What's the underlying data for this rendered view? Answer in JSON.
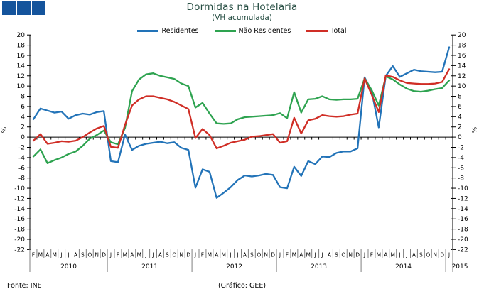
{
  "header": {
    "title": "Dormidas na Hotelaria",
    "subtitle": "(VH acumulada)"
  },
  "axes": {
    "unit": "%"
  },
  "footer": {
    "source": "Fonte: INE",
    "credit": "(Gráfico: GEE)"
  },
  "logo": {
    "color": "#14549C",
    "square_count": 3
  },
  "colors": {
    "title_text": "#264D42",
    "axis": "#000000"
  },
  "chart_data": {
    "type": "line",
    "title": "Dormidas na Hotelaria",
    "subtitle": "(VH acumulada)",
    "legend_position": "top",
    "y_axis": {
      "min": -22,
      "max": 20,
      "step": 2,
      "unit": "%",
      "sides": [
        "left",
        "right"
      ]
    },
    "x_months": [
      "F",
      "M",
      "A",
      "M",
      "J",
      "J",
      "A",
      "S",
      "O",
      "N",
      "D",
      "J",
      "F",
      "M",
      "A",
      "M",
      "J",
      "J",
      "A",
      "S",
      "O",
      "N",
      "D",
      "J",
      "F",
      "M",
      "A",
      "M",
      "J",
      "J",
      "A",
      "S",
      "O",
      "N",
      "D",
      "J",
      "F",
      "M",
      "A",
      "M",
      "J",
      "J",
      "A",
      "S",
      "O",
      "N",
      "D",
      "J",
      "F",
      "M",
      "A",
      "M",
      "J",
      "J",
      "A",
      "S",
      "O",
      "N",
      "D",
      "J"
    ],
    "years": [
      {
        "label": "2010",
        "start": 0,
        "count": 11
      },
      {
        "label": "2011",
        "start": 11,
        "count": 12
      },
      {
        "label": "2012",
        "start": 23,
        "count": 12
      },
      {
        "label": "2013",
        "start": 35,
        "count": 12
      },
      {
        "label": "2014",
        "start": 47,
        "count": 12
      },
      {
        "label": "2015",
        "start": 59,
        "count": 1
      }
    ],
    "series": [
      {
        "name": "Residentes",
        "color": "#2273B8",
        "values": [
          3.5,
          5.6,
          5.2,
          4.8,
          5.0,
          3.6,
          4.3,
          4.6,
          4.4,
          4.9,
          5.1,
          -4.7,
          -4.9,
          0.5,
          -2.5,
          -1.7,
          -1.3,
          -1.1,
          -0.9,
          -1.2,
          -1.0,
          -2.1,
          -2.5,
          -9.9,
          -6.3,
          -6.8,
          -11.9,
          -10.9,
          -9.8,
          -8.4,
          -7.5,
          -7.7,
          -7.5,
          -7.2,
          -7.4,
          -9.8,
          -10.0,
          -5.8,
          -7.6,
          -4.7,
          -5.3,
          -3.8,
          -3.9,
          -3.1,
          -2.8,
          -2.8,
          -2.2,
          11.7,
          9.0,
          1.9,
          12.0,
          13.9,
          11.8,
          12.5,
          13.2,
          12.9,
          12.8,
          12.7,
          12.8,
          17.6
        ]
      },
      {
        "name": "Não Residentes",
        "color": "#2EA350",
        "values": [
          -3.8,
          -2.4,
          -5.1,
          -4.5,
          -4.0,
          -3.3,
          -2.8,
          -1.7,
          -0.3,
          0.4,
          1.3,
          -1.0,
          -1.4,
          1.8,
          9.0,
          11.3,
          12.3,
          12.5,
          12.0,
          11.7,
          11.4,
          10.5,
          10.0,
          5.8,
          6.7,
          4.6,
          2.7,
          2.6,
          2.7,
          3.5,
          3.9,
          4.0,
          4.1,
          4.2,
          4.3,
          4.7,
          3.7,
          8.8,
          4.8,
          7.4,
          7.5,
          8.0,
          7.4,
          7.3,
          7.4,
          7.4,
          7.5,
          11.5,
          9.2,
          6.2,
          11.9,
          11.3,
          10.3,
          9.5,
          9.0,
          8.9,
          9.1,
          9.4,
          9.6,
          11.1
        ]
      },
      {
        "name": "Total",
        "color": "#D02E26",
        "values": [
          -0.7,
          0.6,
          -1.3,
          -1.1,
          -0.8,
          -0.9,
          -0.7,
          0.0,
          0.9,
          1.7,
          2.2,
          -1.9,
          -2.1,
          2.4,
          6.2,
          7.4,
          8.0,
          8.0,
          7.7,
          7.4,
          6.9,
          6.2,
          5.5,
          -0.2,
          1.6,
          0.4,
          -2.2,
          -1.7,
          -1.1,
          -0.8,
          -0.5,
          0.1,
          0.2,
          0.4,
          0.6,
          -1.1,
          -0.8,
          3.8,
          0.7,
          3.3,
          3.6,
          4.3,
          4.1,
          4.0,
          4.1,
          4.4,
          4.6,
          11.5,
          8.3,
          4.9,
          12.1,
          11.8,
          11.1,
          10.6,
          10.5,
          10.4,
          10.4,
          10.5,
          10.8,
          13.3
        ]
      }
    ]
  }
}
